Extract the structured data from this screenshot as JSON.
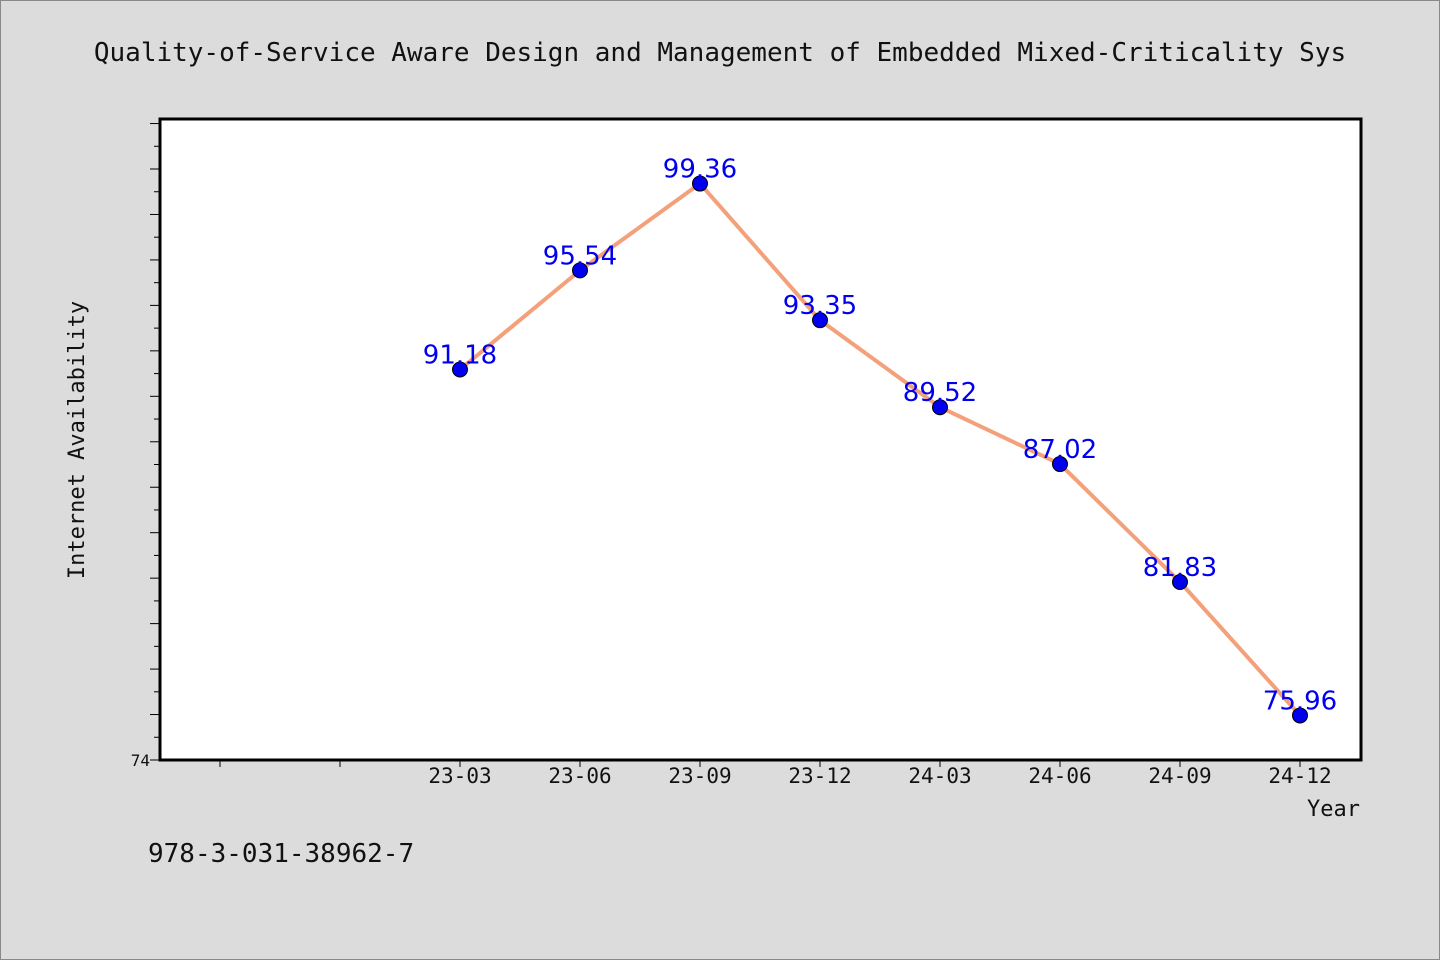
{
  "chart_data": {
    "type": "line",
    "title": "Quality-of-Service Aware Design and Management of Embedded Mixed-Criticality Sys",
    "xlabel": "Year",
    "ylabel": "Internet Availability",
    "categories": [
      "23-03",
      "23-06",
      "23-09",
      "23-12",
      "24-03",
      "24-06",
      "24-09",
      "24-12"
    ],
    "series": [
      {
        "values": [
          91.18,
          95.54,
          99.36,
          93.35,
          89.52,
          87.02,
          81.83,
          75.96
        ]
      }
    ],
    "data_labels": [
      "91.18",
      "95.54",
      "99.36",
      "93.35",
      "89.52",
      "87.02",
      "81.83",
      "75.96"
    ],
    "ylim": [
      74,
      102.2
    ],
    "y_tick_label": "74",
    "grid": false,
    "colors": {
      "line": "#f4a07a",
      "marker": "#0000ee",
      "data_label": "#0000ee",
      "plot_background": "#ffffff",
      "page_background": "#dcdcdc"
    }
  },
  "footer_text": "978-3-031-38962-7"
}
